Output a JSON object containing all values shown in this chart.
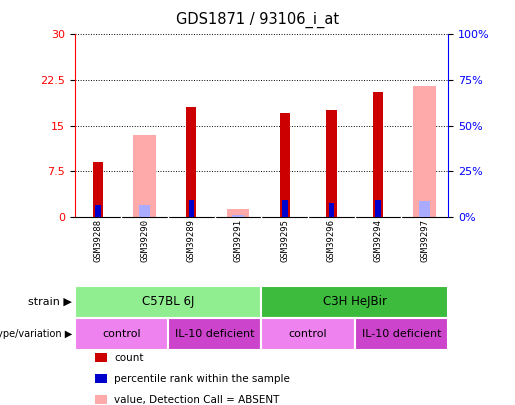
{
  "title": "GDS1871 / 93106_i_at",
  "samples": [
    "GSM39288",
    "GSM39290",
    "GSM39289",
    "GSM39291",
    "GSM39295",
    "GSM39296",
    "GSM39294",
    "GSM39297"
  ],
  "count_values": [
    9.0,
    0,
    18.0,
    0,
    17.0,
    17.5,
    20.5,
    0
  ],
  "rank_values": [
    6.5,
    0,
    9.0,
    0,
    9.0,
    7.5,
    9.0,
    0
  ],
  "absent_value_values": [
    0,
    13.5,
    0,
    1.2,
    0,
    0,
    0,
    21.5
  ],
  "absent_rank_values": [
    0,
    6.5,
    0,
    0.8,
    0,
    0,
    0,
    8.5
  ],
  "ylim_left": [
    0,
    30
  ],
  "ylim_right": [
    0,
    100
  ],
  "yticks_left": [
    0,
    7.5,
    15,
    22.5,
    30
  ],
  "yticks_right": [
    0,
    25,
    50,
    75,
    100
  ],
  "ytick_labels_left": [
    "0",
    "7.5",
    "15",
    "22.5",
    "30"
  ],
  "ytick_labels_right": [
    "0%",
    "25%",
    "50%",
    "75%",
    "100%"
  ],
  "strain_groups": [
    {
      "label": "C57BL 6J",
      "start": 0,
      "end": 4,
      "color": "#90ee90"
    },
    {
      "label": "C3H HeJBir",
      "start": 4,
      "end": 8,
      "color": "#3dbb3d"
    }
  ],
  "genotype_groups": [
    {
      "label": "control",
      "start": 0,
      "end": 2,
      "color": "#ee82ee"
    },
    {
      "label": "IL-10 deficient",
      "start": 2,
      "end": 4,
      "color": "#cc44cc"
    },
    {
      "label": "control",
      "start": 4,
      "end": 6,
      "color": "#ee82ee"
    },
    {
      "label": "IL-10 deficient",
      "start": 6,
      "end": 8,
      "color": "#cc44cc"
    }
  ],
  "color_count": "#cc0000",
  "color_rank": "#0000cc",
  "color_absent_value": "#ffaaaa",
  "color_absent_rank": "#aaaaff",
  "bar_width": 0.22,
  "background_plot": "white",
  "background_label": "#c8c8c8"
}
